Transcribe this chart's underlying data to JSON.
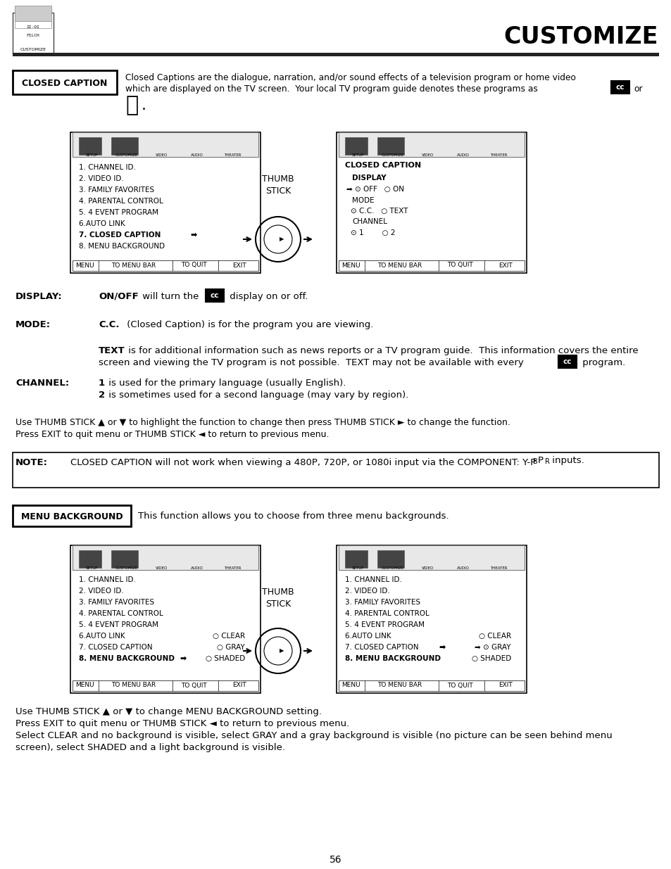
{
  "title": "CUSTOMIZE",
  "page_num": "56",
  "bg_color": "#ffffff",
  "text_color": "#000000",
  "closed_caption_label": "CLOSED CAPTION",
  "menu_bg_label": "MENU BACKGROUND",
  "menu_bg_text": "This function allows you to choose from three menu backgrounds.",
  "note_label": "NOTE:",
  "note_text": "CLOSED CAPTION will not work when viewing a 480P, 720P, or 1080i input via the COMPONENT: Y-P",
  "note_subscript_b": "B",
  "note_mid": "P",
  "note_subscript_r": "R",
  "note_end": " inputs.",
  "display_label": "DISPLAY:",
  "display_bold": "ON/OFF",
  "display_rest": " will turn the",
  "display_end": "display on or off.",
  "mode_label": "MODE:",
  "mode_bold": "C.C.",
  "mode_rest": " (Closed Caption) is for the program you are viewing.",
  "text_bold": "TEXT",
  "text_line1": " is for additional information such as news reports or a TV program guide.  This information covers the entire",
  "text_line2": "screen and viewing the TV program is not possible.  TEXT may not be available with every",
  "text_end": "program.",
  "channel_label": "CHANNEL:",
  "channel_1_bold": "1",
  "channel_1_rest": " is used for the primary language (usually English).",
  "channel_2_bold": "2",
  "channel_2_rest": " is sometimes used for a second language (may vary by region).",
  "nav1": "Use THUMB STICK ▲ or ▼ to highlight the function to change then press THUMB STICK ► to change the function.",
  "nav2": "Press EXIT to quit menu or THUMB STICK ◄ to return to previous menu.",
  "bottom_nav1": "Use THUMB STICK ▲ or ▼ to change MENU BACKGROUND setting.",
  "bottom_nav2": "Press EXIT to quit menu or THUMB STICK ◄ to return to previous menu.",
  "bottom_nav3a": "Select CLEAR and no background is visible, select GRAY and a gray background is visible (no picture can be seen behind menu",
  "bottom_nav3b": "screen), select SHADED and a light background is visible.",
  "left_menu": [
    "1. CHANNEL ID.",
    "2. VIDEO ID.",
    "3. FAMILY FAVORITES",
    "4. PARENTAL CONTROL",
    "5. 4 EVENT PROGRAM",
    "6.AUTO LINK",
    "7. CLOSED CAPTION",
    "8. MENU BACKGROUND"
  ],
  "right_cc_menu": [
    "CLOSED CAPTION",
    "DISPLAY",
    "➡ ⊙ OFF   ○ ON",
    "MODE",
    "⊙ C.C.   ○ TEXT",
    "CHANNEL",
    "⊙ 1        ○ 2"
  ],
  "bottom_left_menu": [
    "1. CHANNEL ID.",
    "2. VIDEO ID.",
    "3. FAMILY FAVORITES",
    "4. PARENTAL CONTROL",
    "5. 4 EVENT PROGRAM",
    "6.AUTO LINK",
    "7. CLOSED CAPTION",
    "8. MENU BACKGROUND"
  ],
  "bottom_left_radios": [
    "",
    "",
    "",
    "",
    "",
    "○ CLEAR",
    "○ GRAY",
    "○ SHADED"
  ],
  "bottom_right_menu": [
    "1. CHANNEL ID.",
    "2. VIDEO ID.",
    "3. FAMILY FAVORITES",
    "4. PARENTAL CONTROL",
    "5. 4 EVENT PROGRAM",
    "6.AUTO LINK",
    "7. CLOSED CAPTION",
    "8. MENU BACKGROUND"
  ],
  "bottom_right_radios": [
    "",
    "",
    "",
    "",
    "",
    "○ CLEAR",
    "➡ ⊙ GRAY",
    "○ SHADED"
  ],
  "thumb_stick": "THUMB\nSTICK",
  "menu_bar_items": [
    "MENU",
    "TO MENU BAR",
    "TO QUIT",
    "EXIT"
  ]
}
